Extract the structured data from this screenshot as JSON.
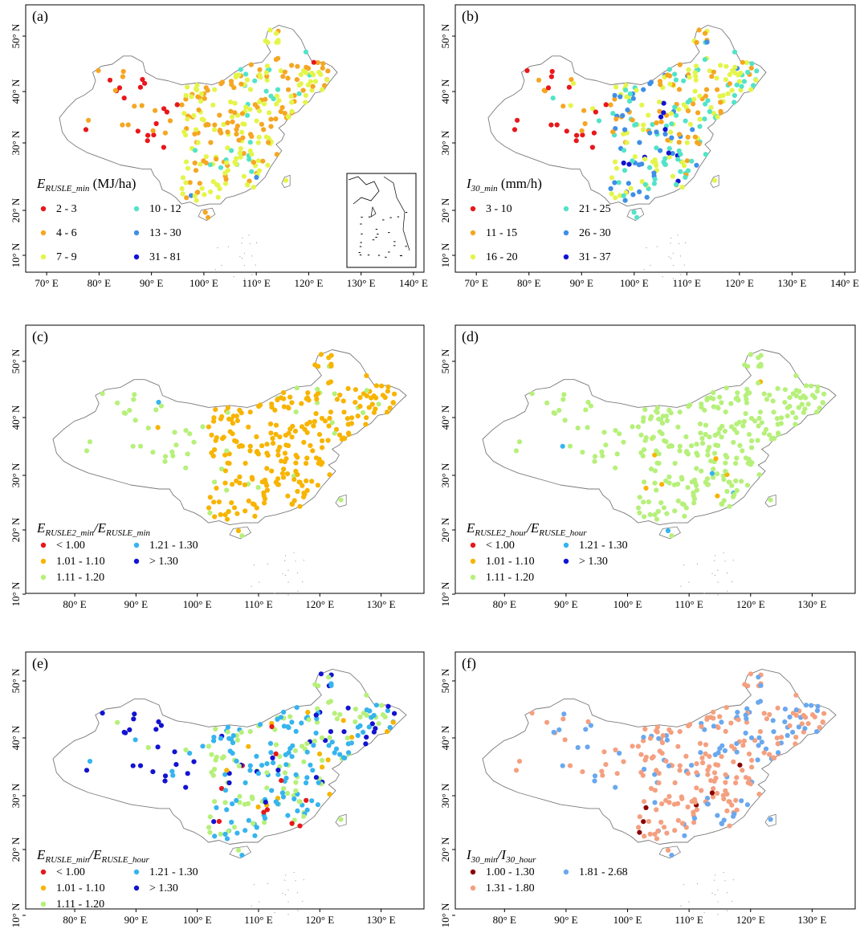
{
  "colors": {
    "red": "#e8171b",
    "orange": "#f5a623",
    "yellow": "#e4f54a",
    "cyan": "#52e3c8",
    "blue": "#3f8fe6",
    "navy": "#1313d1",
    "amber": "#f7b400",
    "lightgreen": "#b6f07a",
    "skyblue": "#36b4ee",
    "darkred": "#8b0000",
    "salmon": "#f4a080",
    "cornflower": "#6aa8ee"
  },
  "panels": [
    {
      "id": "a",
      "label": "(a)",
      "inset": true,
      "lat_ticks": [
        "10° N",
        "20° N",
        "30° N",
        "40° N",
        "50° N"
      ],
      "lon_ticks": [
        "70° E",
        "80° E",
        "90° E",
        "100° E",
        "110° E",
        "120° E",
        "130° E",
        "140° E"
      ],
      "lon_values": [
        70,
        80,
        90,
        100,
        110,
        120,
        130,
        140
      ],
      "legend_title": {
        "main": "E",
        "sub": "RUSLE_min",
        "rest": " (MJ/ha)"
      },
      "legend_items": [
        {
          "label": "2 - 3",
          "color": "#e8171b"
        },
        {
          "label": "4 - 6",
          "color": "#f5a623"
        },
        {
          "label": "7 - 9",
          "color": "#e4f54a"
        },
        {
          "label": "10 - 12",
          "color": "#52e3c8"
        },
        {
          "label": "13 - 30",
          "color": "#3f8fe6"
        },
        {
          "label": "31 - 81",
          "color": "#1313d1"
        }
      ],
      "palette": [
        "#e8171b",
        "#f5a623",
        "#e4f54a",
        "#52e3c8",
        "#3f8fe6",
        "#1313d1"
      ],
      "weights": {
        "west": [
          0.52,
          0.46,
          0.02,
          0,
          0,
          0
        ],
        "northeast": [
          0.05,
          0.35,
          0.5,
          0.1,
          0,
          0
        ],
        "east": [
          0,
          0.45,
          0.5,
          0.05,
          0,
          0
        ],
        "south": [
          0,
          0.35,
          0.5,
          0.1,
          0.04,
          0.01
        ]
      }
    },
    {
      "id": "b",
      "label": "(b)",
      "inset": false,
      "lat_ticks": [
        "10° N",
        "20° N",
        "30° N",
        "40° N",
        "50° N"
      ],
      "lon_ticks": [
        "70° E",
        "80° E",
        "90° E",
        "100° E",
        "110° E",
        "120° E",
        "130° E",
        "140° E"
      ],
      "lon_values": [
        70,
        80,
        90,
        100,
        110,
        120,
        130,
        140
      ],
      "legend_title": {
        "main": "I",
        "sub": "30_min",
        "rest": " (mm/h)"
      },
      "legend_items": [
        {
          "label": "3 - 10",
          "color": "#e8171b"
        },
        {
          "label": "11 - 15",
          "color": "#f5a623"
        },
        {
          "label": "16 - 20",
          "color": "#e4f54a"
        },
        {
          "label": "21 - 25",
          "color": "#52e3c8"
        },
        {
          "label": "26 - 30",
          "color": "#3f8fe6"
        },
        {
          "label": "31 - 37",
          "color": "#1313d1"
        }
      ],
      "palette": [
        "#e8171b",
        "#f5a623",
        "#e4f54a",
        "#52e3c8",
        "#3f8fe6",
        "#1313d1"
      ],
      "weights": {
        "west": [
          0.55,
          0.3,
          0.1,
          0.05,
          0,
          0
        ],
        "northeast": [
          0,
          0.25,
          0.4,
          0.3,
          0.05,
          0
        ],
        "east": [
          0,
          0.2,
          0.35,
          0.25,
          0.15,
          0.05
        ],
        "south": [
          0,
          0.05,
          0.25,
          0.35,
          0.25,
          0.1
        ]
      }
    },
    {
      "id": "c",
      "label": "(c)",
      "inset": false,
      "lat_ticks": [
        "10° N",
        "20° N",
        "30° N",
        "40° N",
        "50° N"
      ],
      "lon_ticks": [
        "80° E",
        "90° E",
        "100° E",
        "110° E",
        "120° E",
        "130° E"
      ],
      "lon_values": [
        80,
        90,
        100,
        110,
        120,
        130
      ],
      "legend_title": {
        "main": "E",
        "sub": "RUSLE2_min",
        "rest": "/E",
        "sub2": "RUSLE_min"
      },
      "legend_items": [
        {
          "label": "< 1.00",
          "color": "#e8171b"
        },
        {
          "label": "1.01 - 1.10",
          "color": "#f7b400"
        },
        {
          "label": "1.11 - 1.20",
          "color": "#b6f07a"
        },
        {
          "label": "1.21 - 1.30",
          "color": "#36b4ee"
        },
        {
          "label": "> 1.30",
          "color": "#1313d1"
        }
      ],
      "palette": [
        "#e8171b",
        "#f7b400",
        "#b6f07a",
        "#36b4ee",
        "#1313d1"
      ],
      "weights": {
        "west": [
          0,
          0.2,
          0.77,
          0.03,
          0
        ],
        "northeast": [
          0,
          0.85,
          0.15,
          0,
          0
        ],
        "east": [
          0,
          0.9,
          0.1,
          0,
          0
        ],
        "south": [
          0,
          0.92,
          0.08,
          0,
          0
        ]
      }
    },
    {
      "id": "d",
      "label": "(d)",
      "inset": false,
      "lat_ticks": [
        "10° N",
        "20° N",
        "30° N",
        "40° N",
        "50° N"
      ],
      "lon_ticks": [
        "80° E",
        "90° E",
        "100° E",
        "110° E",
        "120° E",
        "130° E"
      ],
      "lon_values": [
        80,
        90,
        100,
        110,
        120,
        130
      ],
      "legend_title": {
        "main": "E",
        "sub": "RUSLE2_hour",
        "rest": "/E",
        "sub2": "RUSLE_hour"
      },
      "legend_items": [
        {
          "label": "< 1.00",
          "color": "#e8171b"
        },
        {
          "label": "1.01 - 1.10",
          "color": "#f7b400"
        },
        {
          "label": "1.11 - 1.20",
          "color": "#b6f07a"
        },
        {
          "label": "1.21 - 1.30",
          "color": "#36b4ee"
        },
        {
          "label": "> 1.30",
          "color": "#1313d1"
        }
      ],
      "palette": [
        "#e8171b",
        "#f7b400",
        "#b6f07a",
        "#36b4ee",
        "#1313d1"
      ],
      "weights": {
        "west": [
          0,
          0.03,
          0.95,
          0.02,
          0
        ],
        "northeast": [
          0,
          0.02,
          0.98,
          0,
          0
        ],
        "east": [
          0,
          0.03,
          0.97,
          0,
          0
        ],
        "south": [
          0,
          0.04,
          0.92,
          0.04,
          0
        ]
      }
    },
    {
      "id": "e",
      "label": "(e)",
      "inset": false,
      "lat_ticks": [
        "10° N",
        "20° N",
        "30° N",
        "40° N",
        "50° N"
      ],
      "lon_ticks": [
        "80° E",
        "90° E",
        "100° E",
        "110° E",
        "120° E",
        "130° E"
      ],
      "lon_values": [
        80,
        90,
        100,
        110,
        120,
        130
      ],
      "legend_title": {
        "main": "E",
        "sub": "RUSLE_min",
        "rest": "/E",
        "sub2": "RUSLE_hour"
      },
      "legend_items": [
        {
          "label": "< 1.00",
          "color": "#e8171b"
        },
        {
          "label": "1.01 - 1.10",
          "color": "#f7b400"
        },
        {
          "label": "1.11 - 1.20",
          "color": "#b6f07a"
        },
        {
          "label": "1.21 - 1.30",
          "color": "#36b4ee"
        },
        {
          "label": "> 1.30",
          "color": "#1313d1"
        }
      ],
      "palette": [
        "#e8171b",
        "#f7b400",
        "#b6f07a",
        "#36b4ee",
        "#1313d1"
      ],
      "weights": {
        "west": [
          0,
          0,
          0.1,
          0.2,
          0.7
        ],
        "northeast": [
          0,
          0.05,
          0.35,
          0.4,
          0.2
        ],
        "east": [
          0.05,
          0.05,
          0.4,
          0.4,
          0.1
        ],
        "south": [
          0.04,
          0.05,
          0.4,
          0.45,
          0.06
        ]
      }
    },
    {
      "id": "f",
      "label": "(f)",
      "inset": false,
      "lat_ticks": [
        "10° N",
        "20° N",
        "30° N",
        "40° N",
        "50° N"
      ],
      "lon_ticks": [
        "80° E",
        "90° E",
        "100° E",
        "110° E",
        "120° E",
        "130° E"
      ],
      "lon_values": [
        80,
        90,
        100,
        110,
        120,
        130
      ],
      "legend_title": {
        "main": "I",
        "sub": "30_min",
        "rest": "/I",
        "sub2": "30_hour"
      },
      "legend_items": [
        {
          "label": "1.00 - 1.30",
          "color": "#8b0000"
        },
        {
          "label": "1.31 - 1.80",
          "color": "#f4a080"
        },
        {
          "label": "1.81 - 2.68",
          "color": "#6aa8ee"
        }
      ],
      "palette": [
        "#8b0000",
        "#f4a080",
        "#6aa8ee"
      ],
      "weights": {
        "west": [
          0,
          0.55,
          0.45
        ],
        "northeast": [
          0,
          0.6,
          0.4
        ],
        "east": [
          0.02,
          0.7,
          0.28
        ],
        "south": [
          0.02,
          0.75,
          0.23
        ]
      }
    }
  ]
}
